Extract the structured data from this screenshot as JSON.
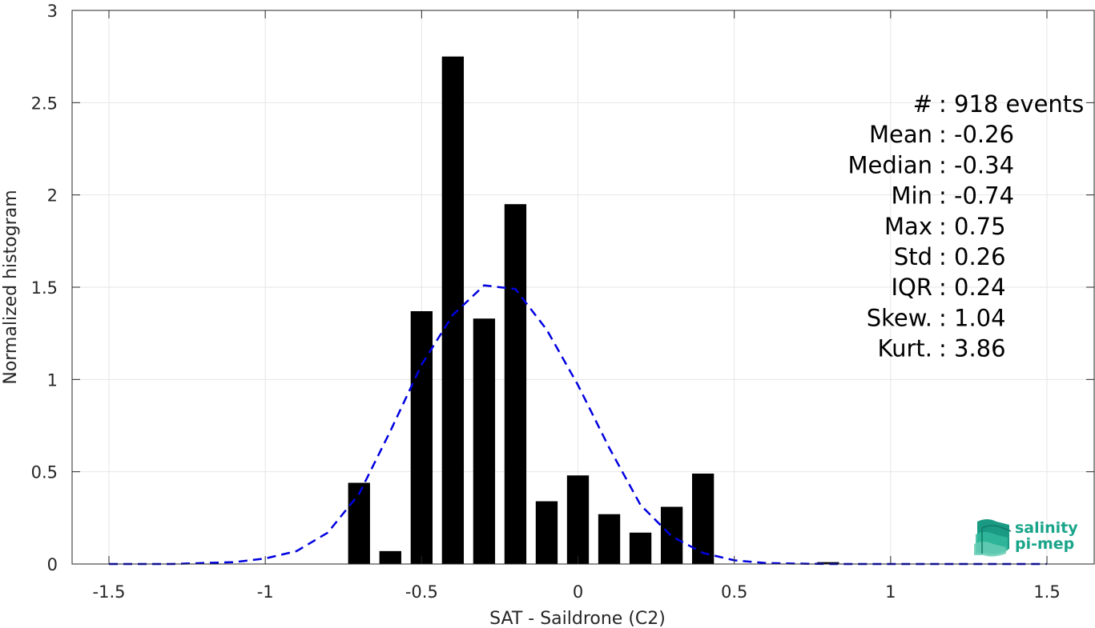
{
  "chart_data": {
    "type": "bar",
    "xlabel": "SAT - Saildrone (C2)",
    "ylabel": "Normalized histogram",
    "xlim": [
      -1.5,
      1.5
    ],
    "ylim": [
      0,
      3
    ],
    "xticks": [
      "-1.5",
      "-1",
      "-0.5",
      "0",
      "0.5",
      "1",
      "1.5"
    ],
    "yticks": [
      "0",
      "0.5",
      "1",
      "1.5",
      "2",
      "2.5",
      "3"
    ],
    "grid": true,
    "bar_width": 0.07,
    "bars": [
      {
        "x": -0.7,
        "value": 0.44
      },
      {
        "x": -0.6,
        "value": 0.07
      },
      {
        "x": -0.5,
        "value": 1.37
      },
      {
        "x": -0.4,
        "value": 2.75
      },
      {
        "x": -0.3,
        "value": 1.33
      },
      {
        "x": -0.2,
        "value": 1.95
      },
      {
        "x": -0.1,
        "value": 0.34
      },
      {
        "x": 0.0,
        "value": 0.48
      },
      {
        "x": 0.1,
        "value": 0.27
      },
      {
        "x": 0.2,
        "value": 0.17
      },
      {
        "x": 0.3,
        "value": 0.31
      },
      {
        "x": 0.4,
        "value": 0.49
      },
      {
        "x": 0.8,
        "value": 0.01
      }
    ],
    "fit_curve": {
      "style": "dashed",
      "color": "#0000e0",
      "x": [
        -1.5,
        -1.4,
        -1.3,
        -1.2,
        -1.1,
        -1.0,
        -0.9,
        -0.8,
        -0.7,
        -0.6,
        -0.5,
        -0.4,
        -0.3,
        -0.2,
        -0.1,
        0.0,
        0.1,
        0.2,
        0.3,
        0.4,
        0.5,
        0.6,
        0.7,
        0.8,
        0.9,
        1.0,
        1.1,
        1.2,
        1.3,
        1.4,
        1.5
      ],
      "y": [
        0.0,
        0.0,
        0.0,
        0.005,
        0.01,
        0.03,
        0.07,
        0.17,
        0.38,
        0.72,
        1.08,
        1.35,
        1.51,
        1.49,
        1.27,
        0.97,
        0.63,
        0.32,
        0.15,
        0.06,
        0.02,
        0.005,
        0.002,
        0.0,
        0.0,
        0.0,
        0.0,
        0.0,
        0.0,
        0.0,
        0.0
      ]
    },
    "stats": [
      {
        "label": "#  ",
        "value": "918 events"
      },
      {
        "label": "Mean",
        "value": "-0.26"
      },
      {
        "label": "Median",
        "value": "-0.34"
      },
      {
        "label": "Min",
        "value": "-0.74"
      },
      {
        "label": "Max",
        "value": "0.75"
      },
      {
        "label": "Std",
        "value": "0.26"
      },
      {
        "label": "IQR",
        "value": "0.24"
      },
      {
        "label": "Skew.",
        "value": "1.04"
      },
      {
        "label": "Kurt.",
        "value": "3.86"
      }
    ]
  },
  "logo": {
    "line1": "salinity",
    "line2": "pi-mep",
    "color": "#1aa58a"
  }
}
